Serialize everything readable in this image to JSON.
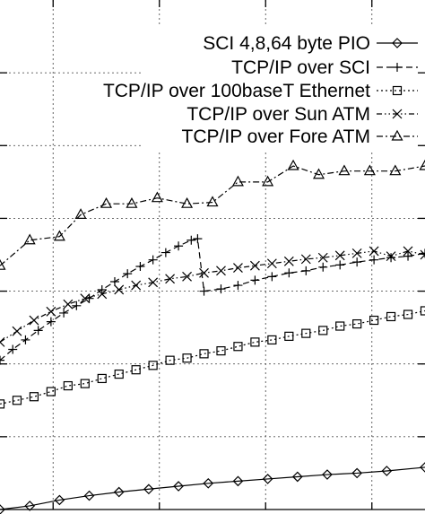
{
  "chart_data": {
    "type": "line",
    "title": "",
    "xlabel": "",
    "ylabel": "",
    "xlim": [
      0,
      100
    ],
    "ylim": [
      0,
      7
    ],
    "x_gridlines": [
      12.5,
      37.5,
      62.5,
      87.5
    ],
    "y_gridlines": [
      1,
      2,
      3,
      4,
      5,
      6
    ],
    "grid": true,
    "legend": "top-right",
    "series": [
      {
        "name": "SCI 4,8,64 byte PIO",
        "marker": "diamond",
        "line_style": "solid",
        "x": [
          0,
          7,
          14,
          21,
          28,
          35,
          42,
          49,
          56,
          63,
          70,
          77,
          84,
          91,
          100
        ],
        "y": [
          0.0,
          0.05,
          0.13,
          0.19,
          0.24,
          0.28,
          0.32,
          0.36,
          0.39,
          0.42,
          0.45,
          0.48,
          0.5,
          0.53,
          0.58
        ]
      },
      {
        "name": "TCP/IP over SCI",
        "marker": "plus",
        "line_style": "dashed",
        "x": [
          0,
          3,
          6,
          9,
          12,
          15,
          18,
          21,
          24,
          27,
          30,
          33,
          36,
          39,
          42,
          45,
          46.5,
          48,
          52,
          56,
          60,
          64,
          68,
          72,
          76,
          80,
          84,
          88,
          92,
          96,
          100
        ],
        "y": [
          2.05,
          2.2,
          2.33,
          2.46,
          2.58,
          2.7,
          2.8,
          2.9,
          3.02,
          3.13,
          3.24,
          3.34,
          3.43,
          3.53,
          3.62,
          3.7,
          3.72,
          3.0,
          3.03,
          3.08,
          3.15,
          3.2,
          3.25,
          3.28,
          3.33,
          3.36,
          3.4,
          3.43,
          3.46,
          3.48,
          3.52
        ]
      },
      {
        "name": "TCP/IP over 100baseT Ethernet",
        "marker": "square",
        "line_style": "dotted",
        "x": [
          0,
          4,
          8,
          12,
          16,
          20,
          24,
          28,
          32,
          36,
          40,
          44,
          48,
          52,
          56,
          60,
          64,
          68,
          72,
          76,
          80,
          84,
          88,
          92,
          96,
          100
        ],
        "y": [
          1.45,
          1.5,
          1.55,
          1.62,
          1.7,
          1.73,
          1.8,
          1.86,
          1.92,
          1.98,
          2.05,
          2.08,
          2.14,
          2.18,
          2.24,
          2.3,
          2.33,
          2.38,
          2.42,
          2.46,
          2.52,
          2.55,
          2.6,
          2.65,
          2.68,
          2.73
        ]
      },
      {
        "name": "TCP/IP over Sun ATM",
        "marker": "cross",
        "line_style": "dash-dot-dot",
        "x": [
          0,
          4,
          8,
          12,
          16,
          20,
          24,
          28,
          32,
          36,
          40,
          44,
          48,
          52,
          56,
          60,
          64,
          68,
          72,
          76,
          80,
          84,
          88,
          92,
          96,
          100
        ],
        "y": [
          2.3,
          2.45,
          2.6,
          2.72,
          2.82,
          2.9,
          2.96,
          3.02,
          3.08,
          3.12,
          3.17,
          3.2,
          3.25,
          3.28,
          3.32,
          3.35,
          3.38,
          3.41,
          3.44,
          3.46,
          3.49,
          3.52,
          3.55,
          3.48,
          3.55,
          3.5
        ]
      },
      {
        "name": "TCP/IP over Fore ATM",
        "marker": "triangle",
        "line_style": "dash-dot",
        "x": [
          0,
          7,
          14,
          19,
          25,
          31,
          37,
          44,
          50,
          56,
          63,
          69,
          75,
          81,
          87,
          93,
          100
        ],
        "y": [
          3.35,
          3.7,
          3.75,
          4.05,
          4.2,
          4.2,
          4.28,
          4.2,
          4.22,
          4.5,
          4.5,
          4.72,
          4.6,
          4.65,
          4.65,
          4.65,
          4.72
        ]
      }
    ]
  }
}
